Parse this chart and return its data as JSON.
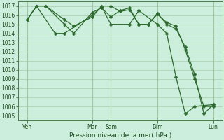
{
  "title": "Pression niveau de la mer( hPa )",
  "bg_color": "#cceedd",
  "line_color": "#2d6a2d",
  "grid_color_minor": "#aaccaa",
  "grid_color_major": "#88bb88",
  "ylim": [
    1004.5,
    1017.5
  ],
  "yticks": [
    1005,
    1006,
    1007,
    1008,
    1009,
    1010,
    1011,
    1012,
    1013,
    1014,
    1015,
    1016,
    1017
  ],
  "xlim": [
    0,
    22
  ],
  "xtick_labels": [
    "Ven",
    "Mar",
    "Sam",
    "Dim",
    "Lun"
  ],
  "xtick_positions": [
    1,
    8,
    10,
    15,
    21
  ],
  "vline_positions": [
    1,
    8,
    10,
    15,
    21
  ],
  "series1_x": [
    1,
    2,
    3,
    5,
    6,
    8,
    9,
    10,
    11,
    12,
    13,
    14,
    15,
    16,
    17,
    18,
    19,
    20,
    21
  ],
  "series1_y": [
    1015.5,
    1017.0,
    1017.0,
    1015.5,
    1014.8,
    1015.8,
    1017.0,
    1017.0,
    1016.4,
    1016.6,
    1015.0,
    1015.0,
    1016.1,
    1015.2,
    1014.8,
    1012.2,
    1009.0,
    1006.0,
    1006.0
  ],
  "series2_x": [
    1,
    2,
    3,
    5,
    6,
    8,
    9,
    10,
    11,
    12,
    13,
    14,
    15,
    16,
    17,
    18,
    19,
    20,
    21
  ],
  "series2_y": [
    1015.5,
    1017.0,
    1017.0,
    1015.0,
    1014.0,
    1016.3,
    1016.8,
    1015.8,
    1016.5,
    1016.8,
    1015.0,
    1015.0,
    1016.2,
    1015.0,
    1014.5,
    1012.5,
    1009.5,
    1005.2,
    1006.2
  ],
  "series3_x": [
    1,
    2,
    4,
    5,
    8,
    9,
    10,
    12,
    13,
    15,
    16,
    17,
    18,
    19,
    21
  ],
  "series3_y": [
    1015.5,
    1017.0,
    1014.0,
    1014.0,
    1016.0,
    1016.9,
    1015.0,
    1015.0,
    1016.5,
    1015.0,
    1014.0,
    1009.2,
    1005.2,
    1006.0,
    1006.2
  ],
  "markersize": 2.5
}
